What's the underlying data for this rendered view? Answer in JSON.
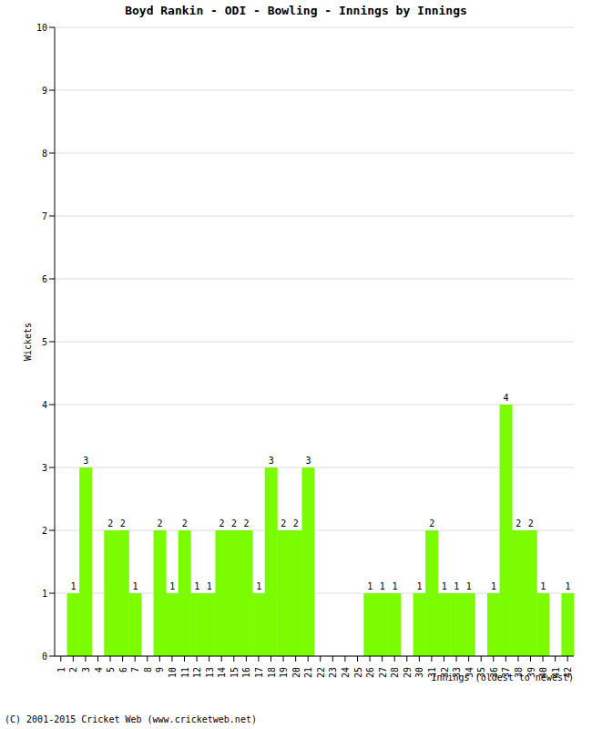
{
  "chart_data": {
    "type": "bar",
    "title": "Boyd Rankin - ODI - Bowling - Innings by Innings",
    "x_label": "Innings (oldest to newest)",
    "y_label": "Wickets",
    "footer": "(C) 2001-2015 Cricket Web (www.cricketweb.net)",
    "categories": [
      "1",
      "2",
      "3",
      "4",
      "5",
      "6",
      "7",
      "8",
      "9",
      "10",
      "11",
      "12",
      "13",
      "14",
      "15",
      "16",
      "17",
      "18",
      "19",
      "20",
      "21",
      "22",
      "23",
      "24",
      "25",
      "26",
      "27",
      "28",
      "29",
      "30",
      "31",
      "32",
      "33",
      "34",
      "35",
      "36",
      "37",
      "38",
      "39",
      "40",
      "41",
      "42"
    ],
    "values": [
      0,
      1,
      3,
      0,
      2,
      2,
      1,
      0,
      2,
      1,
      2,
      1,
      1,
      2,
      2,
      2,
      1,
      3,
      2,
      2,
      3,
      0,
      0,
      0,
      0,
      1,
      1,
      1,
      0,
      1,
      2,
      1,
      1,
      1,
      0,
      1,
      4,
      2,
      2,
      1,
      0,
      1
    ],
    "color": "#7cfc00",
    "ylim": [
      0,
      10
    ],
    "yticks": [
      0,
      1,
      2,
      3,
      4,
      5,
      6,
      7,
      8,
      9,
      10
    ],
    "grid": true,
    "data_labels": true
  }
}
